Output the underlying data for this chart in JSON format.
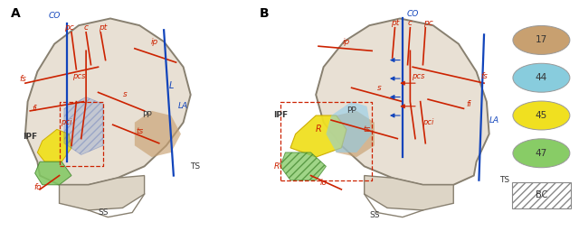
{
  "bg_color": "#ffffff",
  "rc": "#cc2200",
  "bc": "#1144bb",
  "lw": 1.2,
  "panel_A_label": "A",
  "panel_B_label": "B",
  "legend": {
    "items": [
      {
        "color": "#c8a070",
        "text": "17"
      },
      {
        "color": "#88ccdd",
        "text": "44"
      },
      {
        "color": "#f0e020",
        "text": "45"
      },
      {
        "color": "#88cc66",
        "text": "47"
      }
    ],
    "bc_label": "BC"
  }
}
